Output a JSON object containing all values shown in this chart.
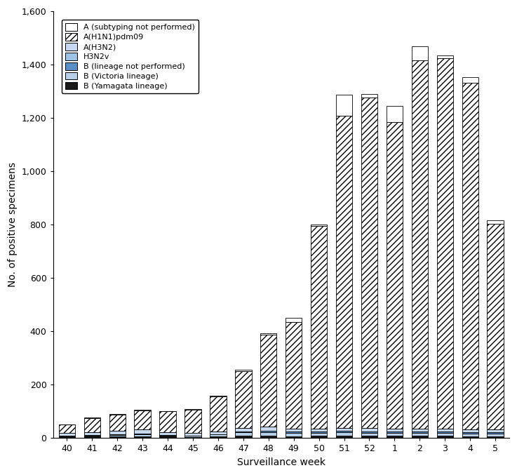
{
  "weeks": [
    "40",
    "41",
    "42",
    "43",
    "44",
    "45",
    "46",
    "47",
    "48",
    "49",
    "50",
    "51",
    "52",
    "1",
    "2",
    "3",
    "4",
    "5"
  ],
  "B_yamagata": [
    5,
    5,
    6,
    7,
    5,
    4,
    6,
    10,
    8,
    7,
    8,
    8,
    8,
    8,
    8,
    8,
    7,
    7
  ],
  "B_victoria": [
    3,
    5,
    6,
    8,
    5,
    4,
    7,
    12,
    15,
    12,
    12,
    15,
    12,
    12,
    12,
    12,
    10,
    10
  ],
  "B_unsub": [
    2,
    2,
    2,
    2,
    2,
    2,
    2,
    3,
    5,
    5,
    5,
    5,
    5,
    5,
    5,
    5,
    5,
    5
  ],
  "H3N2v": [
    0,
    0,
    0,
    0,
    0,
    0,
    0,
    0,
    0,
    0,
    0,
    0,
    0,
    0,
    0,
    0,
    0,
    0
  ],
  "A_H3N2": [
    8,
    10,
    12,
    15,
    10,
    8,
    10,
    12,
    15,
    12,
    10,
    10,
    12,
    10,
    10,
    10,
    10,
    10
  ],
  "A_H1N1": [
    32,
    52,
    62,
    72,
    78,
    88,
    130,
    215,
    345,
    400,
    760,
    1170,
    1240,
    1150,
    1380,
    1390,
    1300,
    770
  ],
  "A_unsub": [
    2,
    3,
    3,
    3,
    2,
    2,
    3,
    5,
    5,
    15,
    5,
    80,
    12,
    60,
    55,
    10,
    22,
    15
  ],
  "color_B_yamagata": "#1a1a1a",
  "color_B_victoria": "#b8cfe8",
  "color_B_unsub": "#5b8fc7",
  "color_H3N2v": "#9dc3e6",
  "color_A_H3N2": "#c6d9f0",
  "color_A_H1N1_face": "#ffffff",
  "color_A_unsub_face": "#ffffff",
  "hatch_A_H1N1": "////",
  "xlabel": "Surveillance week",
  "ylabel": "No. of positive specimens",
  "ylim": [
    0,
    1600
  ],
  "yticks": [
    0,
    200,
    400,
    600,
    800,
    1000,
    1200,
    1400,
    1600
  ],
  "legend_labels": [
    "A (subtyping not performed)",
    "A(H1N1)pdm09",
    "A(H3N2)",
    "H3N2v",
    "B (lineage not performed)",
    "B (Victoria lineage)",
    "B (Yamagata lineage)"
  ]
}
